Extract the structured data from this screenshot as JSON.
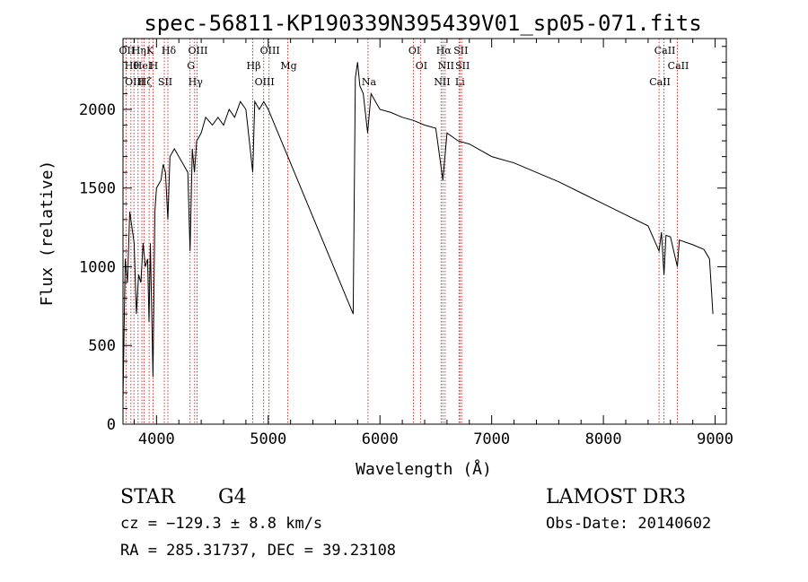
{
  "chart_data": {
    "type": "line",
    "title": "spec-56811-KP190339N395439V01_sp05-071.fits",
    "xlabel": "Wavelength (Å)",
    "ylabel": "Flux (relative)",
    "xlim": [
      3700,
      9100
    ],
    "ylim": [
      0,
      2450
    ],
    "x_ticks": [
      4000,
      5000,
      6000,
      7000,
      8000,
      9000
    ],
    "x_tick_labels": [
      "4000",
      "5000",
      "6000",
      "7000",
      "8000",
      "9000"
    ],
    "y_ticks": [
      0,
      500,
      1000,
      1500,
      2000
    ],
    "y_tick_labels": [
      "0",
      "500",
      "1000",
      "1500",
      "2000"
    ],
    "grid": false,
    "series": [
      {
        "name": "flux",
        "points": [
          [
            3700,
            150
          ],
          [
            3720,
            1050
          ],
          [
            3740,
            900
          ],
          [
            3760,
            1350
          ],
          [
            3780,
            1250
          ],
          [
            3800,
            1150
          ],
          [
            3820,
            700
          ],
          [
            3840,
            950
          ],
          [
            3860,
            900
          ],
          [
            3880,
            1150
          ],
          [
            3900,
            1000
          ],
          [
            3920,
            1050
          ],
          [
            3933,
            650
          ],
          [
            3945,
            1150
          ],
          [
            3968,
            300
          ],
          [
            3985,
            1350
          ],
          [
            4000,
            1500
          ],
          [
            4040,
            1550
          ],
          [
            4060,
            1650
          ],
          [
            4080,
            1600
          ],
          [
            4102,
            1300
          ],
          [
            4120,
            1700
          ],
          [
            4160,
            1750
          ],
          [
            4200,
            1700
          ],
          [
            4240,
            1650
          ],
          [
            4280,
            1600
          ],
          [
            4300,
            1100
          ],
          [
            4320,
            1750
          ],
          [
            4340,
            1600
          ],
          [
            4360,
            1800
          ],
          [
            4400,
            1850
          ],
          [
            4440,
            1950
          ],
          [
            4500,
            1900
          ],
          [
            4550,
            1950
          ],
          [
            4600,
            1900
          ],
          [
            4650,
            2000
          ],
          [
            4700,
            1950
          ],
          [
            4750,
            2050
          ],
          [
            4800,
            2000
          ],
          [
            4861,
            1600
          ],
          [
            4880,
            2050
          ],
          [
            4920,
            2000
          ],
          [
            4960,
            2050
          ],
          [
            5000,
            2000
          ],
          [
            5760,
            700
          ],
          [
            5780,
            2200
          ],
          [
            5800,
            2300
          ],
          [
            5820,
            2150
          ],
          [
            5850,
            2100
          ],
          [
            5890,
            1850
          ],
          [
            5920,
            2100
          ],
          [
            5960,
            2050
          ],
          [
            6000,
            2000
          ],
          [
            6100,
            1980
          ],
          [
            6200,
            1950
          ],
          [
            6300,
            1930
          ],
          [
            6400,
            1900
          ],
          [
            6500,
            1880
          ],
          [
            6563,
            1550
          ],
          [
            6600,
            1850
          ],
          [
            6700,
            1800
          ],
          [
            6800,
            1780
          ],
          [
            6900,
            1740
          ],
          [
            7000,
            1700
          ],
          [
            7200,
            1660
          ],
          [
            7400,
            1600
          ],
          [
            7600,
            1540
          ],
          [
            7800,
            1470
          ],
          [
            8000,
            1400
          ],
          [
            8200,
            1330
          ],
          [
            8400,
            1260
          ],
          [
            8498,
            1100
          ],
          [
            8520,
            1220
          ],
          [
            8542,
            950
          ],
          [
            8560,
            1200
          ],
          [
            8600,
            1190
          ],
          [
            8662,
            1000
          ],
          [
            8680,
            1170
          ],
          [
            8800,
            1140
          ],
          [
            8900,
            1110
          ],
          [
            8950,
            1050
          ],
          [
            8980,
            700
          ]
        ]
      }
    ],
    "line_markers": [
      {
        "wavelength": 3727,
        "label": "OII"
      },
      {
        "wavelength": 3771,
        "label": "Hθ"
      },
      {
        "wavelength": 3798,
        "label": "OIII"
      },
      {
        "wavelength": 3835,
        "label": "Hη"
      },
      {
        "wavelength": 3869,
        "label": "HeI"
      },
      {
        "wavelength": 3889,
        "label": "Hζ"
      },
      {
        "wavelength": 3934,
        "label": "K"
      },
      {
        "wavelength": 3969,
        "label": "H"
      },
      {
        "wavelength": 4070,
        "label": "SII"
      },
      {
        "wavelength": 4102,
        "label": "Hδ"
      },
      {
        "wavelength": 4300,
        "label": "G"
      },
      {
        "wavelength": 4341,
        "label": "Hγ"
      },
      {
        "wavelength": 4363,
        "label": "OIII"
      },
      {
        "wavelength": 4861,
        "label": "Hβ"
      },
      {
        "wavelength": 4959,
        "label": "OIII"
      },
      {
        "wavelength": 5007,
        "label": "OIII"
      },
      {
        "wavelength": 5175,
        "label": "Mg"
      },
      {
        "wavelength": 5893,
        "label": "Na"
      },
      {
        "wavelength": 6300,
        "label": "OI"
      },
      {
        "wavelength": 6363,
        "label": "OI"
      },
      {
        "wavelength": 6548,
        "label": "NII"
      },
      {
        "wavelength": 6563,
        "label": "Hα"
      },
      {
        "wavelength": 6583,
        "label": "NII"
      },
      {
        "wavelength": 6708,
        "label": "Li"
      },
      {
        "wavelength": 6716,
        "label": "SII"
      },
      {
        "wavelength": 6731,
        "label": "SII"
      },
      {
        "wavelength": 8498,
        "label": "CaII"
      },
      {
        "wavelength": 8542,
        "label": "CaII"
      },
      {
        "wavelength": 8662,
        "label": "CaII"
      }
    ]
  },
  "info": {
    "object_class": "STAR",
    "subclass": "G4",
    "survey": "LAMOST DR3",
    "cz_line": "cz = −129.3 ± 8.8 km/s",
    "obs_date": "Obs-Date: 20140602",
    "coords_line": "RA = 285.31737, DEC =  39.23108"
  },
  "colors": {
    "spectrum": "#000000",
    "marker_line": "#cc3333",
    "axis": "#000000"
  }
}
